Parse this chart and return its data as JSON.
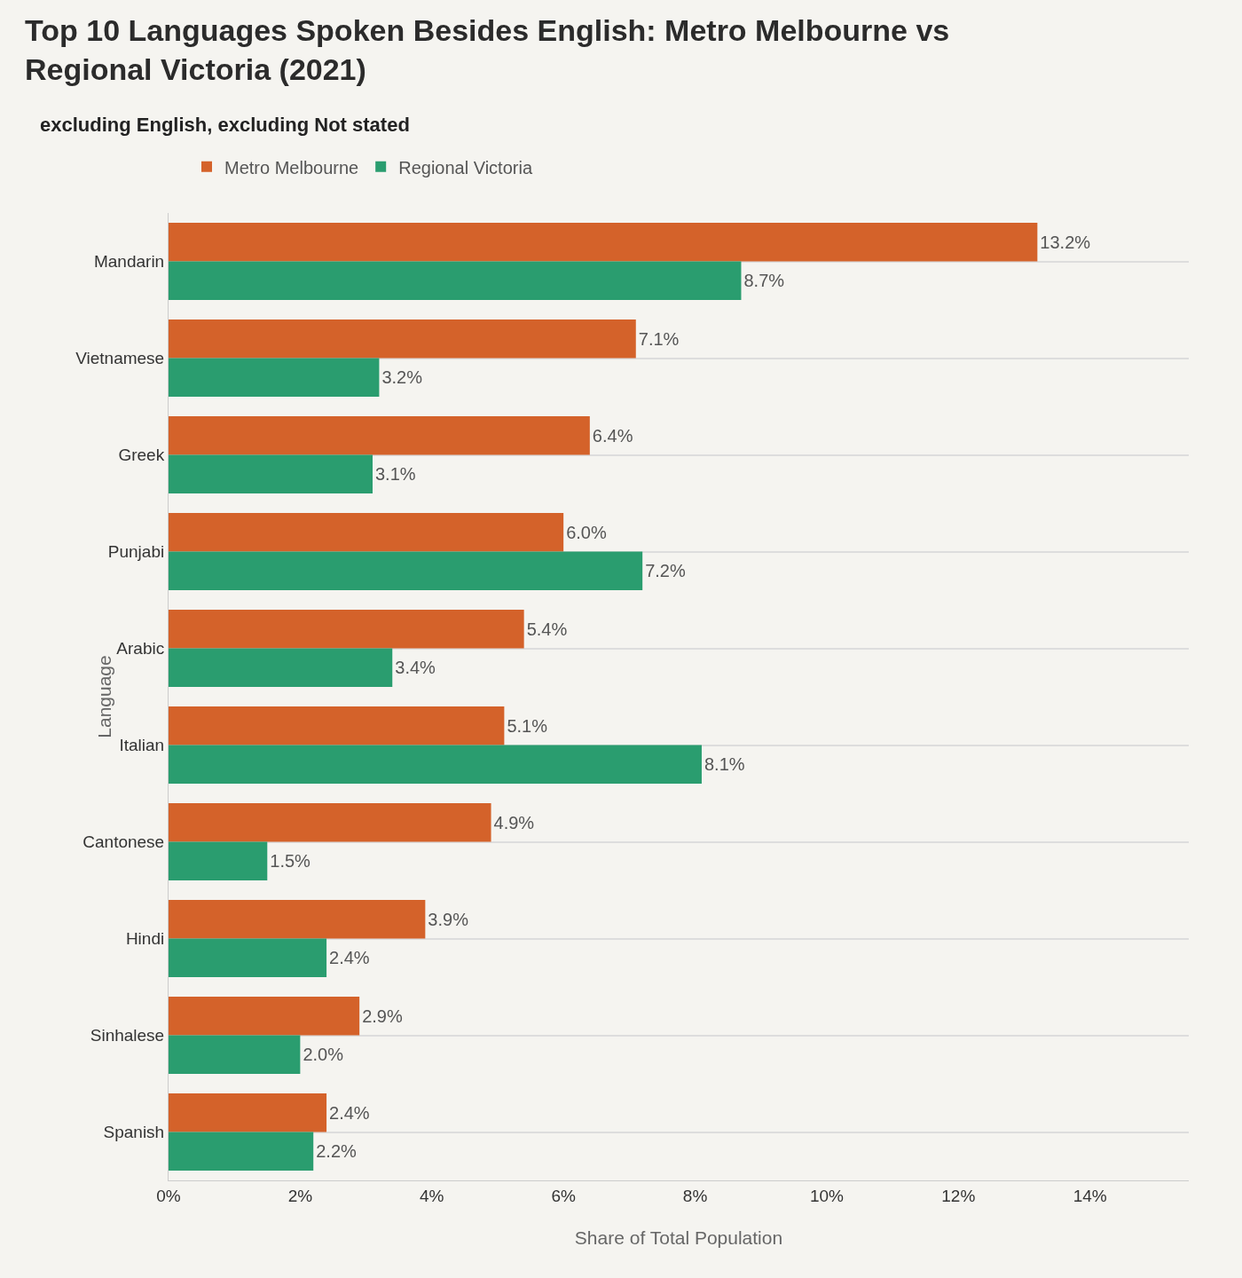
{
  "chart_data": {
    "type": "bar",
    "orientation": "horizontal",
    "title": "Top 10 Languages Spoken Besides English: Metro Melbourne vs Regional Victoria (2021)",
    "subtitle": "excluding English, excluding Not stated",
    "xlabel": "Share of Total Population",
    "ylabel": "Language",
    "categories": [
      "Mandarin",
      "Vietnamese",
      "Greek",
      "Punjabi",
      "Arabic",
      "Italian",
      "Cantonese",
      "Hindi",
      "Sinhalese",
      "Spanish"
    ],
    "series": [
      {
        "name": "Metro Melbourne",
        "color": "#d4622a",
        "values": [
          13.2,
          7.1,
          6.4,
          6.0,
          5.4,
          5.1,
          4.9,
          3.9,
          2.9,
          2.4
        ],
        "value_labels": [
          "13.2%",
          "7.1%",
          "6.4%",
          "6.0%",
          "5.4%",
          "5.1%",
          "4.9%",
          "3.9%",
          "2.9%",
          "2.4%"
        ]
      },
      {
        "name": "Regional Victoria",
        "color": "#2a9d6f",
        "values": [
          8.7,
          3.2,
          3.1,
          7.2,
          3.4,
          8.1,
          1.5,
          2.4,
          2.0,
          2.2
        ],
        "value_labels": [
          "8.7%",
          "3.2%",
          "3.1%",
          "7.2%",
          "3.4%",
          "8.1%",
          "1.5%",
          "2.4%",
          "2.0%",
          "2.2%"
        ]
      }
    ],
    "xlim": [
      0,
      15.5
    ],
    "xticks": [
      {
        "value": 0,
        "label": "0%"
      },
      {
        "value": 2,
        "label": "2%"
      },
      {
        "value": 4,
        "label": "4%"
      },
      {
        "value": 6,
        "label": "6%"
      },
      {
        "value": 8,
        "label": "8%"
      },
      {
        "value": 10,
        "label": "10%"
      },
      {
        "value": 12,
        "label": "12%"
      },
      {
        "value": 14,
        "label": "14%"
      }
    ],
    "grid": "y",
    "legend": "top"
  }
}
